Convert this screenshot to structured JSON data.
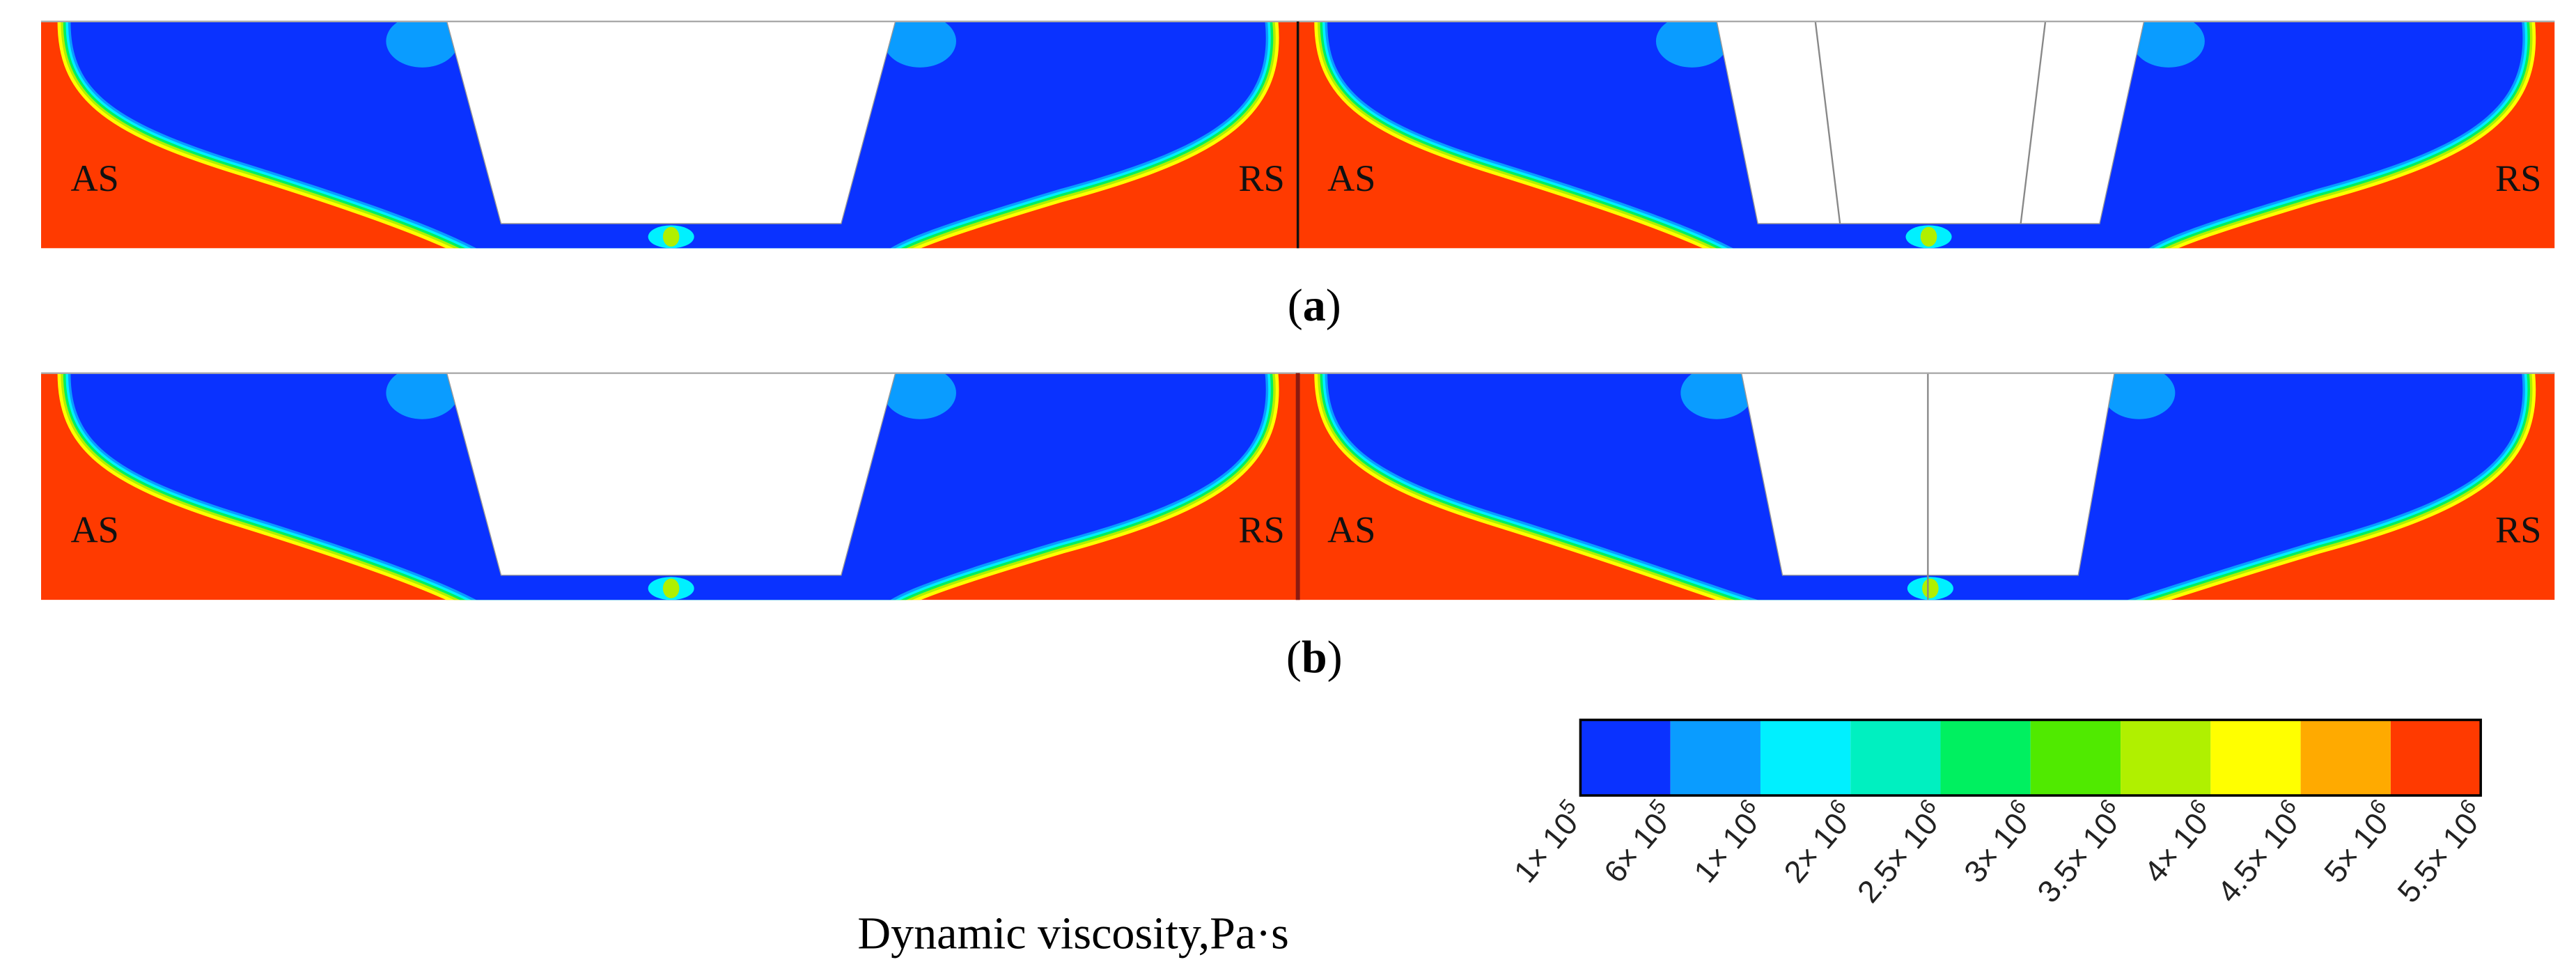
{
  "panels": [
    {
      "caption": [
        "(",
        "a",
        ")"
      ],
      "views": [
        {
          "left": "AS",
          "right": "RS"
        },
        {
          "left": "AS",
          "right": "RS"
        }
      ]
    },
    {
      "caption": [
        "(",
        "b",
        ")"
      ],
      "views": [
        {
          "left": "AS",
          "right": "RS"
        },
        {
          "left": "AS",
          "right": "RS"
        }
      ]
    }
  ],
  "colorbar": {
    "colors": [
      "#0a32ff",
      "#0a9cff",
      "#00f0ff",
      "#00f0c0",
      "#00f060",
      "#50ea00",
      "#b0f000",
      "#ffff00",
      "#ffaa00",
      "#ff3a00"
    ],
    "ticks": [
      {
        "base": "1× 10",
        "exponent": "5"
      },
      {
        "base": "6× 10",
        "exponent": "5"
      },
      {
        "base": "1× 10",
        "exponent": "6"
      },
      {
        "base": "2× 10",
        "exponent": "6"
      },
      {
        "base": "2.5× 10",
        "exponent": "6"
      },
      {
        "base": "3× 10",
        "exponent": "6"
      },
      {
        "base": "3.5× 10",
        "exponent": "6"
      },
      {
        "base": "4× 10",
        "exponent": "6"
      },
      {
        "base": "4.5× 10",
        "exponent": "6"
      },
      {
        "base": "5× 10",
        "exponent": "6"
      },
      {
        "base": "5.5× 10",
        "exponent": "6"
      }
    ]
  },
  "title": "Dynamic viscosity,Pa·s"
}
